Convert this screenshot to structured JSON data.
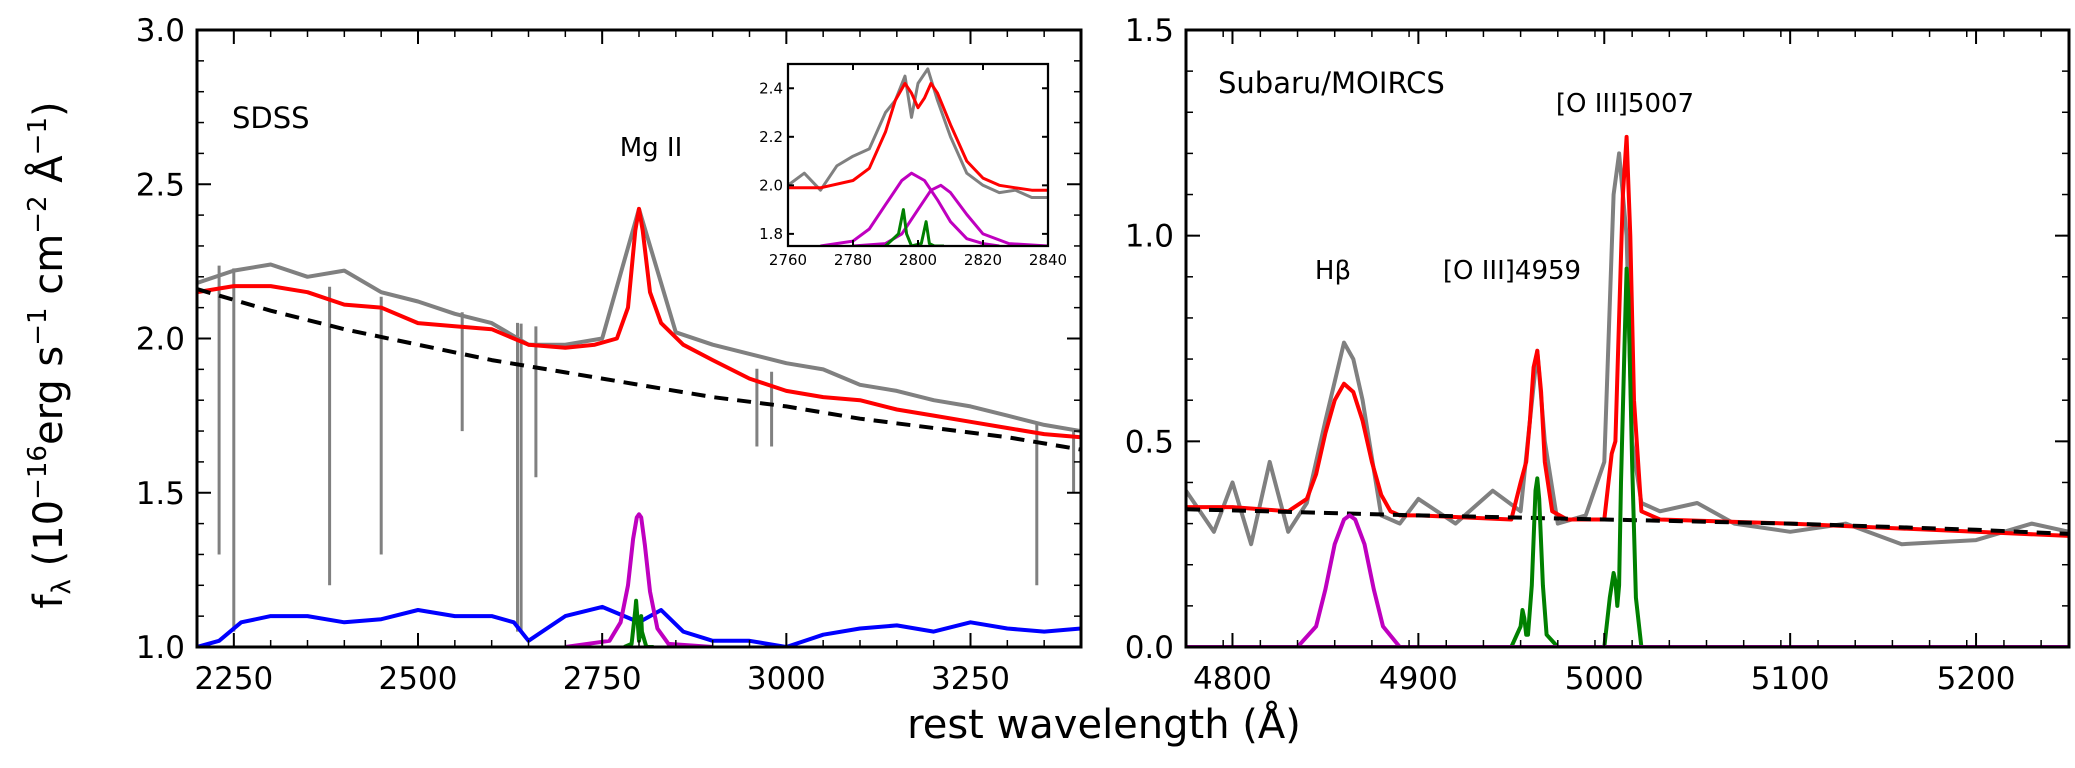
{
  "figure": {
    "xlabel": "rest wavelength (Å)",
    "ylabel_parts": {
      "f": "f",
      "lambda": "λ",
      "open": " (10",
      "exp16": "−16",
      "erg": "erg s",
      "m1a": "−1",
      "cm": " cm",
      "m2": "−2",
      "ang": " Å",
      "m1b": "−1",
      "close": ")"
    }
  },
  "chart_data": [
    {
      "type": "line",
      "panel": "left",
      "label": "SDSS",
      "annotations": [
        {
          "text": "Mg II",
          "x": 2800,
          "y": 2.6
        }
      ],
      "xlim": [
        2200,
        3400
      ],
      "ylim": [
        1.0,
        3.0
      ],
      "xticks": [
        2250,
        2500,
        2750,
        3000,
        3250
      ],
      "yticks": [
        1.0,
        1.5,
        2.0,
        2.5,
        3.0
      ],
      "xtick_labels": [
        "2250",
        "2500",
        "2750",
        "3000",
        "3250"
      ],
      "ytick_labels": [
        "1.0",
        "1.5",
        "2.0",
        "2.5",
        "3.0"
      ],
      "colors": {
        "data": "#808080",
        "model": "#ff0000",
        "continuum": "#000000",
        "feii": "#0000ff",
        "broad": "#bf00bf",
        "narrow": "#008000"
      },
      "series": [
        {
          "name": "observed spectrum",
          "color": "#808080",
          "x": [
            2200,
            2250,
            2300,
            2350,
            2400,
            2450,
            2500,
            2550,
            2600,
            2650,
            2700,
            2750,
            2800,
            2850,
            2900,
            2950,
            3000,
            3050,
            3100,
            3150,
            3200,
            3250,
            3300,
            3350,
            3400
          ],
          "y": [
            2.18,
            2.22,
            2.24,
            2.2,
            2.22,
            2.15,
            2.12,
            2.08,
            2.05,
            1.98,
            1.98,
            2.0,
            2.42,
            2.02,
            1.98,
            1.95,
            1.92,
            1.9,
            1.85,
            1.83,
            1.8,
            1.78,
            1.75,
            1.72,
            1.7
          ]
        },
        {
          "name": "absorption dips",
          "color": "#808080",
          "x": [
            2230,
            2250,
            2380,
            2450,
            2560,
            2635,
            2640,
            2660,
            2960,
            2980,
            3340,
            3390
          ],
          "y": [
            1.3,
            1.05,
            1.2,
            1.3,
            1.7,
            1.05,
            1.05,
            1.55,
            1.65,
            1.65,
            1.2,
            1.5
          ]
        },
        {
          "name": "total model",
          "color": "#ff0000",
          "x": [
            2200,
            2250,
            2300,
            2350,
            2400,
            2450,
            2500,
            2550,
            2600,
            2650,
            2700,
            2740,
            2770,
            2785,
            2795,
            2800,
            2805,
            2815,
            2830,
            2860,
            2900,
            2950,
            3000,
            3050,
            3100,
            3150,
            3200,
            3250,
            3300,
            3350,
            3400
          ],
          "y": [
            2.15,
            2.17,
            2.17,
            2.15,
            2.11,
            2.1,
            2.05,
            2.04,
            2.03,
            1.98,
            1.97,
            1.98,
            2.0,
            2.1,
            2.35,
            2.42,
            2.35,
            2.15,
            2.05,
            1.98,
            1.93,
            1.87,
            1.83,
            1.81,
            1.8,
            1.77,
            1.75,
            1.73,
            1.71,
            1.69,
            1.68
          ]
        },
        {
          "name": "power-law continuum",
          "color": "#000000",
          "dashed": true,
          "x": [
            2200,
            2300,
            2400,
            2500,
            2600,
            2700,
            2800,
            2900,
            3000,
            3100,
            3200,
            3300,
            3400
          ],
          "y": [
            2.16,
            2.09,
            2.03,
            1.98,
            1.93,
            1.89,
            1.85,
            1.81,
            1.78,
            1.74,
            1.71,
            1.68,
            1.64
          ]
        },
        {
          "name": "Fe II template",
          "color": "#0000ff",
          "x": [
            2200,
            2230,
            2260,
            2300,
            2350,
            2400,
            2450,
            2500,
            2550,
            2600,
            2630,
            2650,
            2700,
            2750,
            2780,
            2800,
            2830,
            2860,
            2900,
            2950,
            3000,
            3050,
            3100,
            3150,
            3200,
            3250,
            3300,
            3350,
            3400
          ],
          "y": [
            1.0,
            1.02,
            1.08,
            1.1,
            1.1,
            1.08,
            1.09,
            1.12,
            1.1,
            1.1,
            1.08,
            1.02,
            1.1,
            1.13,
            1.1,
            1.08,
            1.12,
            1.05,
            1.02,
            1.02,
            1.0,
            1.04,
            1.06,
            1.07,
            1.05,
            1.08,
            1.06,
            1.05,
            1.06
          ]
        },
        {
          "name": "Mg II broad",
          "color": "#bf00bf",
          "x": [
            2700,
            2760,
            2775,
            2785,
            2792,
            2797,
            2800,
            2803,
            2808,
            2815,
            2825,
            2840,
            2900
          ],
          "y": [
            1.0,
            1.02,
            1.08,
            1.2,
            1.35,
            1.42,
            1.43,
            1.42,
            1.33,
            1.18,
            1.06,
            1.01,
            1.0
          ]
        },
        {
          "name": "Mg II narrow",
          "color": "#008000",
          "x": [
            2780,
            2790,
            2795,
            2796,
            2797,
            2800,
            2802,
            2803,
            2804,
            2810,
            2820
          ],
          "y": [
            1.0,
            1.01,
            1.12,
            1.15,
            1.12,
            1.02,
            1.05,
            1.1,
            1.05,
            1.0,
            1.0
          ]
        }
      ]
    },
    {
      "type": "line",
      "panel": "inset",
      "xlim": [
        2760,
        2840
      ],
      "ylim": [
        1.75,
        2.5
      ],
      "xticks": [
        2760,
        2780,
        2800,
        2820,
        2840
      ],
      "yticks": [
        1.8,
        2.0,
        2.2,
        2.4
      ],
      "xtick_labels": [
        "2760",
        "2780",
        "2800",
        "2820",
        "2840"
      ],
      "ytick_labels": [
        "1.8",
        "2.0",
        "2.2",
        "2.4"
      ],
      "series": [
        {
          "name": "observed spectrum",
          "color": "#808080",
          "x": [
            2760,
            2765,
            2770,
            2775,
            2780,
            2785,
            2790,
            2793,
            2796,
            2798,
            2800,
            2803,
            2806,
            2810,
            2815,
            2820,
            2825,
            2830,
            2835,
            2840
          ],
          "y": [
            2.0,
            2.05,
            1.98,
            2.08,
            2.12,
            2.15,
            2.3,
            2.35,
            2.45,
            2.28,
            2.42,
            2.48,
            2.35,
            2.2,
            2.05,
            2.0,
            1.97,
            1.98,
            1.95,
            1.95
          ]
        },
        {
          "name": "total model",
          "color": "#ff0000",
          "x": [
            2760,
            2770,
            2780,
            2785,
            2790,
            2793,
            2796,
            2798,
            2800,
            2802,
            2804,
            2806,
            2810,
            2815,
            2820,
            2825,
            2830,
            2835,
            2840
          ],
          "y": [
            1.99,
            1.99,
            2.02,
            2.07,
            2.22,
            2.35,
            2.42,
            2.38,
            2.32,
            2.36,
            2.42,
            2.38,
            2.25,
            2.1,
            2.03,
            2.0,
            1.99,
            1.98,
            1.98
          ]
        },
        {
          "name": "Mg II broad 1",
          "color": "#bf00bf",
          "x": [
            2770,
            2780,
            2785,
            2790,
            2795,
            2798,
            2802,
            2806,
            2810,
            2815,
            2820,
            2825
          ],
          "y": [
            1.75,
            1.77,
            1.82,
            1.92,
            2.02,
            2.05,
            2.02,
            1.94,
            1.85,
            1.78,
            1.76,
            1.75
          ]
        },
        {
          "name": "Mg II broad 2",
          "color": "#bf00bf",
          "x": [
            2780,
            2790,
            2795,
            2800,
            2804,
            2807,
            2810,
            2815,
            2820,
            2828,
            2840
          ],
          "y": [
            1.75,
            1.76,
            1.8,
            1.9,
            1.98,
            2.0,
            1.97,
            1.88,
            1.8,
            1.76,
            1.75
          ]
        },
        {
          "name": "Mg II narrow",
          "color": "#008000",
          "x": [
            2790,
            2794,
            2795.5,
            2796.5,
            2798,
            2801,
            2802.5,
            2803.5,
            2805,
            2808
          ],
          "y": [
            1.75,
            1.8,
            1.9,
            1.8,
            1.75,
            1.76,
            1.85,
            1.76,
            1.75,
            1.75
          ]
        }
      ]
    },
    {
      "type": "line",
      "panel": "right",
      "label": "Subaru/MOIRCS",
      "annotations": [
        {
          "text": "Hβ",
          "x": 4861,
          "y": 0.93
        },
        {
          "text": "[O III]4959",
          "x": 4940,
          "y": 0.93
        },
        {
          "text": "[O III]5007",
          "x": 5007,
          "y": 1.3
        }
      ],
      "xlim": [
        4775,
        5250
      ],
      "ylim": [
        0.0,
        1.5
      ],
      "xticks": [
        4800,
        4900,
        5000,
        5100,
        5200
      ],
      "yticks": [
        0.0,
        0.5,
        1.0,
        1.5
      ],
      "xtick_labels": [
        "4800",
        "4900",
        "5000",
        "5100",
        "5200"
      ],
      "ytick_labels": [
        "0.0",
        "0.5",
        "1.0",
        "1.5"
      ],
      "series": [
        {
          "name": "observed spectrum",
          "color": "#808080",
          "x": [
            4775,
            4790,
            4800,
            4810,
            4820,
            4830,
            4840,
            4850,
            4860,
            4865,
            4870,
            4880,
            4890,
            4900,
            4920,
            4940,
            4955,
            4960,
            4964,
            4968,
            4975,
            4990,
            5000,
            5005,
            5008,
            5012,
            5015,
            5020,
            5030,
            5050,
            5070,
            5100,
            5130,
            5160,
            5200,
            5230,
            5250
          ],
          "y": [
            0.38,
            0.28,
            0.4,
            0.25,
            0.45,
            0.28,
            0.35,
            0.55,
            0.74,
            0.7,
            0.6,
            0.32,
            0.3,
            0.36,
            0.3,
            0.38,
            0.33,
            0.55,
            0.72,
            0.5,
            0.3,
            0.32,
            0.45,
            1.1,
            1.2,
            1.0,
            0.5,
            0.35,
            0.33,
            0.35,
            0.3,
            0.28,
            0.3,
            0.25,
            0.26,
            0.3,
            0.28
          ]
        },
        {
          "name": "total model",
          "color": "#ff0000",
          "x": [
            4775,
            4800,
            4830,
            4840,
            4845,
            4850,
            4855,
            4860,
            4865,
            4870,
            4875,
            4880,
            4885,
            4890,
            4900,
            4950,
            4955,
            4958,
            4960,
            4962,
            4964,
            4966,
            4968,
            4972,
            4980,
            5000,
            5004,
            5006,
            5008,
            5010,
            5012,
            5014,
            5016,
            5020,
            5030,
            5100,
            5200,
            5250
          ],
          "y": [
            0.34,
            0.34,
            0.33,
            0.36,
            0.42,
            0.52,
            0.6,
            0.64,
            0.62,
            0.55,
            0.45,
            0.37,
            0.33,
            0.32,
            0.32,
            0.31,
            0.4,
            0.45,
            0.55,
            0.68,
            0.72,
            0.62,
            0.45,
            0.33,
            0.31,
            0.31,
            0.47,
            0.5,
            0.8,
            1.1,
            1.24,
            1.0,
            0.6,
            0.33,
            0.31,
            0.3,
            0.28,
            0.27
          ]
        },
        {
          "name": "power-law continuum",
          "color": "#000000",
          "dashed": true,
          "x": [
            4775,
            4900,
            5000,
            5100,
            5200,
            5250
          ],
          "y": [
            0.335,
            0.32,
            0.31,
            0.3,
            0.285,
            0.275
          ]
        },
        {
          "name": "H-beta broad",
          "color": "#bf00bf",
          "x": [
            4775,
            4835,
            4845,
            4850,
            4855,
            4860,
            4863,
            4866,
            4871,
            4876,
            4881,
            4890,
            4960,
            5250
          ],
          "y": [
            0.0,
            0.0,
            0.05,
            0.14,
            0.25,
            0.31,
            0.32,
            0.31,
            0.25,
            0.14,
            0.05,
            0.0,
            0.0,
            0.0
          ]
        },
        {
          "name": "[O III] narrow",
          "color": "#008000",
          "x": [
            4775,
            4950,
            4955,
            4956,
            4957,
            4958,
            4959,
            4961,
            4963,
            4964,
            4965,
            4967,
            4969,
            4975,
            5000,
            5003,
            5005,
            5006,
            5007,
            5008,
            5009,
            5011,
            5012,
            5013,
            5015,
            5017,
            5020,
            5030,
            5250
          ],
          "y": [
            0.0,
            0.0,
            0.05,
            0.09,
            0.07,
            0.03,
            0.03,
            0.15,
            0.38,
            0.41,
            0.36,
            0.15,
            0.03,
            0.0,
            0.0,
            0.12,
            0.18,
            0.16,
            0.1,
            0.15,
            0.4,
            0.75,
            0.92,
            0.85,
            0.45,
            0.12,
            0.0,
            0.0,
            0.0
          ]
        },
        {
          "name": "baseline",
          "color": "#bf00bf",
          "x": [
            4775,
            5250
          ],
          "y": [
            0.0,
            0.0
          ]
        }
      ]
    }
  ]
}
